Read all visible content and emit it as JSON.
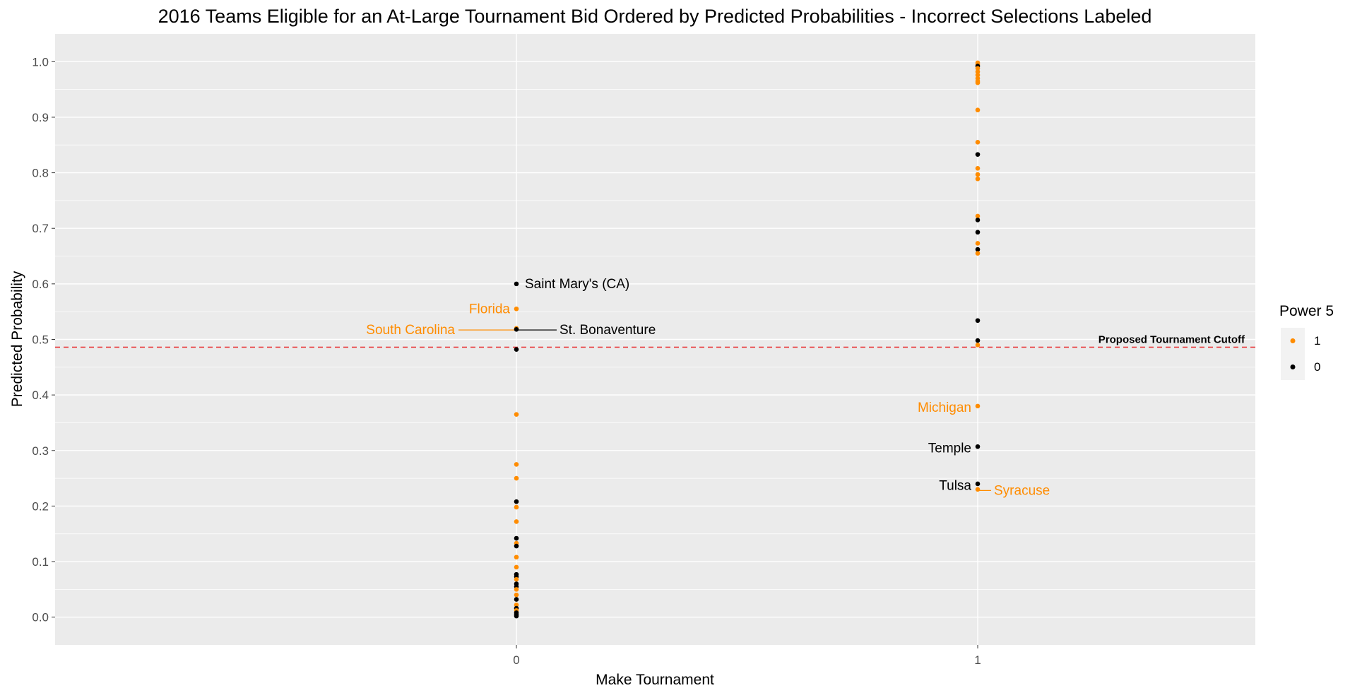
{
  "chart_data": {
    "type": "scatter",
    "title": "2016 Teams Eligible for an At-Large Tournament Bid Ordered by Predicted Probabilities - Incorrect Selections Labeled",
    "xlabel": "Make Tournament",
    "ylabel": "Predicted Probability",
    "x_categories": [
      "0",
      "1"
    ],
    "ylim": [
      -0.05,
      1.05
    ],
    "y_ticks": [
      "0.0",
      "0.1",
      "0.2",
      "0.3",
      "0.4",
      "0.5",
      "0.6",
      "0.7",
      "0.8",
      "0.9",
      "1.0"
    ],
    "grid": true,
    "legend": {
      "title": "Power 5",
      "placement": "right",
      "entries": [
        {
          "key": "1",
          "label": "1",
          "color": "#FF8C00"
        },
        {
          "key": "0",
          "label": "0",
          "color": "#000000"
        }
      ]
    },
    "colors": {
      "power5_1": "#FF8C00",
      "power5_0": "#000000",
      "cutoff": "#E8262A",
      "panel": "#EBEBEB",
      "grid": "#FFFFFF"
    },
    "cutoff": {
      "y": 0.486,
      "label": "Proposed Tournament Cutoff"
    },
    "points": [
      {
        "x": "0",
        "y": 0.6,
        "power5": "0",
        "label": "Saint Mary's (CA)"
      },
      {
        "x": "0",
        "y": 0.555,
        "power5": "1",
        "label": "Florida"
      },
      {
        "x": "0",
        "y": 0.52,
        "power5": "1",
        "label": "South Carolina"
      },
      {
        "x": "0",
        "y": 0.518,
        "power5": "0",
        "label": "St. Bonaventure"
      },
      {
        "x": "0",
        "y": 0.482,
        "power5": "0"
      },
      {
        "x": "0",
        "y": 0.365,
        "power5": "1"
      },
      {
        "x": "0",
        "y": 0.275,
        "power5": "1"
      },
      {
        "x": "0",
        "y": 0.25,
        "power5": "1"
      },
      {
        "x": "0",
        "y": 0.208,
        "power5": "0"
      },
      {
        "x": "0",
        "y": 0.198,
        "power5": "1"
      },
      {
        "x": "0",
        "y": 0.172,
        "power5": "1"
      },
      {
        "x": "0",
        "y": 0.142,
        "power5": "0"
      },
      {
        "x": "0",
        "y": 0.133,
        "power5": "1"
      },
      {
        "x": "0",
        "y": 0.128,
        "power5": "0"
      },
      {
        "x": "0",
        "y": 0.108,
        "power5": "1"
      },
      {
        "x": "0",
        "y": 0.09,
        "power5": "1"
      },
      {
        "x": "0",
        "y": 0.077,
        "power5": "0"
      },
      {
        "x": "0",
        "y": 0.073,
        "power5": "0"
      },
      {
        "x": "0",
        "y": 0.068,
        "power5": "1"
      },
      {
        "x": "0",
        "y": 0.06,
        "power5": "0"
      },
      {
        "x": "0",
        "y": 0.055,
        "power5": "0"
      },
      {
        "x": "0",
        "y": 0.05,
        "power5": "1"
      },
      {
        "x": "0",
        "y": 0.04,
        "power5": "1"
      },
      {
        "x": "0",
        "y": 0.032,
        "power5": "0"
      },
      {
        "x": "0",
        "y": 0.022,
        "power5": "1"
      },
      {
        "x": "0",
        "y": 0.016,
        "power5": "0"
      },
      {
        "x": "0",
        "y": 0.012,
        "power5": "1"
      },
      {
        "x": "0",
        "y": 0.008,
        "power5": "0"
      },
      {
        "x": "0",
        "y": 0.005,
        "power5": "0"
      },
      {
        "x": "0",
        "y": 0.002,
        "power5": "0"
      },
      {
        "x": "1",
        "y": 0.998,
        "power5": "1"
      },
      {
        "x": "1",
        "y": 0.995,
        "power5": "1"
      },
      {
        "x": "1",
        "y": 0.992,
        "power5": "0"
      },
      {
        "x": "1",
        "y": 0.988,
        "power5": "1"
      },
      {
        "x": "1",
        "y": 0.982,
        "power5": "1"
      },
      {
        "x": "1",
        "y": 0.976,
        "power5": "1"
      },
      {
        "x": "1",
        "y": 0.97,
        "power5": "1"
      },
      {
        "x": "1",
        "y": 0.965,
        "power5": "1"
      },
      {
        "x": "1",
        "y": 0.962,
        "power5": "1"
      },
      {
        "x": "1",
        "y": 0.913,
        "power5": "1"
      },
      {
        "x": "1",
        "y": 0.855,
        "power5": "1"
      },
      {
        "x": "1",
        "y": 0.833,
        "power5": "0"
      },
      {
        "x": "1",
        "y": 0.808,
        "power5": "1"
      },
      {
        "x": "1",
        "y": 0.797,
        "power5": "1"
      },
      {
        "x": "1",
        "y": 0.789,
        "power5": "1"
      },
      {
        "x": "1",
        "y": 0.722,
        "power5": "1"
      },
      {
        "x": "1",
        "y": 0.715,
        "power5": "0"
      },
      {
        "x": "1",
        "y": 0.693,
        "power5": "0"
      },
      {
        "x": "1",
        "y": 0.673,
        "power5": "1"
      },
      {
        "x": "1",
        "y": 0.662,
        "power5": "0"
      },
      {
        "x": "1",
        "y": 0.655,
        "power5": "1"
      },
      {
        "x": "1",
        "y": 0.534,
        "power5": "0"
      },
      {
        "x": "1",
        "y": 0.498,
        "power5": "0"
      },
      {
        "x": "1",
        "y": 0.49,
        "power5": "1"
      },
      {
        "x": "1",
        "y": 0.38,
        "power5": "1",
        "label": "Michigan"
      },
      {
        "x": "1",
        "y": 0.307,
        "power5": "0",
        "label": "Temple"
      },
      {
        "x": "1",
        "y": 0.24,
        "power5": "0",
        "label": "Tulsa"
      },
      {
        "x": "1",
        "y": 0.23,
        "power5": "1",
        "label": "Syracuse"
      }
    ]
  }
}
